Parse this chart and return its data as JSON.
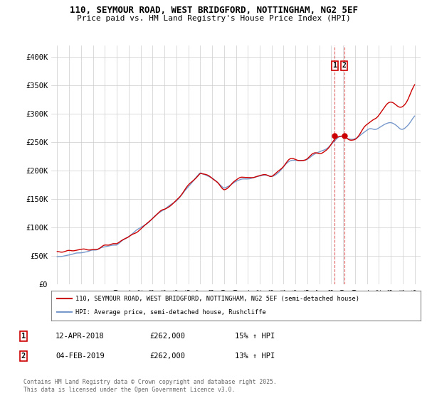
{
  "title_line1": "110, SEYMOUR ROAD, WEST BRIDGFORD, NOTTINGHAM, NG2 5EF",
  "title_line2": "Price paid vs. HM Land Registry's House Price Index (HPI)",
  "legend_label1": "110, SEYMOUR ROAD, WEST BRIDGFORD, NOTTINGHAM, NG2 5EF (semi-detached house)",
  "legend_label2": "HPI: Average price, semi-detached house, Rushcliffe",
  "color_red": "#cc0000",
  "color_blue": "#7799cc",
  "color_vline": "#cc0000",
  "annotation1_date": "12-APR-2018",
  "annotation1_price": "£262,000",
  "annotation1_hpi": "15% ↑ HPI",
  "annotation2_date": "04-FEB-2019",
  "annotation2_price": "£262,000",
  "annotation2_hpi": "13% ↑ HPI",
  "footer": "Contains HM Land Registry data © Crown copyright and database right 2025.\nThis data is licensed under the Open Government Licence v3.0.",
  "ylim": [
    0,
    420000
  ],
  "yticks": [
    0,
    50000,
    100000,
    150000,
    200000,
    250000,
    300000,
    350000,
    400000
  ],
  "ytick_labels": [
    "£0",
    "£50K",
    "£100K",
    "£150K",
    "£200K",
    "£250K",
    "£300K",
    "£350K",
    "£400K"
  ],
  "sale1_year": 2018.28,
  "sale2_year": 2019.09,
  "sale1_price": 262000,
  "sale2_price": 262000,
  "background_color": "#ffffff",
  "grid_color": "#cccccc"
}
